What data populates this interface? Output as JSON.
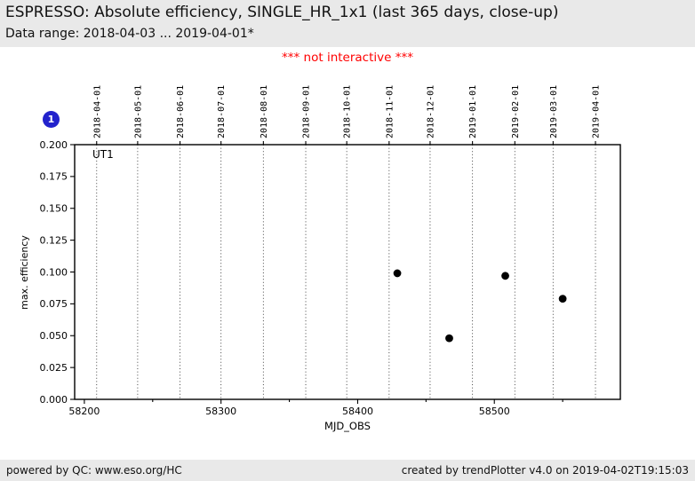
{
  "header": {
    "title": "ESPRESSO: Absolute efficiency, SINGLE_HR_1x1 (last 365 days, close-up)",
    "subtitle": "Data range: 2018-04-03 ... 2019-04-01*"
  },
  "notice": "*** not interactive ***",
  "badge": {
    "label": "1"
  },
  "chart_data": {
    "type": "scatter",
    "series_label": "UT1",
    "xlabel": "MJD_OBS",
    "ylabel": "max. efficiency",
    "xlim": [
      58192.9,
      58592.2
    ],
    "ylim": [
      0.0,
      0.2
    ],
    "x_major_ticks": [
      58200,
      58300,
      58400,
      58500
    ],
    "x_minor_ticks": [
      58250,
      58350,
      58450,
      58550
    ],
    "y_ticks": [
      0.0,
      0.025,
      0.05,
      0.075,
      0.1,
      0.125,
      0.15,
      0.175,
      0.2
    ],
    "grid": "vertical-dotted-at-month-boundaries",
    "top_axis_dates": [
      {
        "label": "2018-04-01",
        "mjd": 58209
      },
      {
        "label": "2018-05-01",
        "mjd": 58239
      },
      {
        "label": "2018-06-01",
        "mjd": 58270
      },
      {
        "label": "2018-07-01",
        "mjd": 58300
      },
      {
        "label": "2018-08-01",
        "mjd": 58331
      },
      {
        "label": "2018-09-01",
        "mjd": 58362
      },
      {
        "label": "2018-10-01",
        "mjd": 58392
      },
      {
        "label": "2018-11-01",
        "mjd": 58423
      },
      {
        "label": "2018-12-01",
        "mjd": 58453
      },
      {
        "label": "2019-01-01",
        "mjd": 58484
      },
      {
        "label": "2019-02-01",
        "mjd": 58515
      },
      {
        "label": "2019-03-01",
        "mjd": 58543
      },
      {
        "label": "2019-04-01",
        "mjd": 58574
      }
    ],
    "points": [
      {
        "mjd": 58429,
        "value": 0.099
      },
      {
        "mjd": 58467,
        "value": 0.048
      },
      {
        "mjd": 58508,
        "value": 0.097
      },
      {
        "mjd": 58550,
        "value": 0.079
      }
    ],
    "marker": {
      "shape": "circle",
      "color": "#000000",
      "radius": 4.4
    }
  },
  "colors": {
    "header_bg": "#e9e9e9",
    "footer_bg": "#e9e9e9",
    "notice_text": "#ff0000",
    "badge_bg": "#2222cc"
  },
  "footer": {
    "left": "powered by QC: www.eso.org/HC",
    "right": "created by trendPlotter v4.0 on 2019-04-02T19:15:03"
  }
}
